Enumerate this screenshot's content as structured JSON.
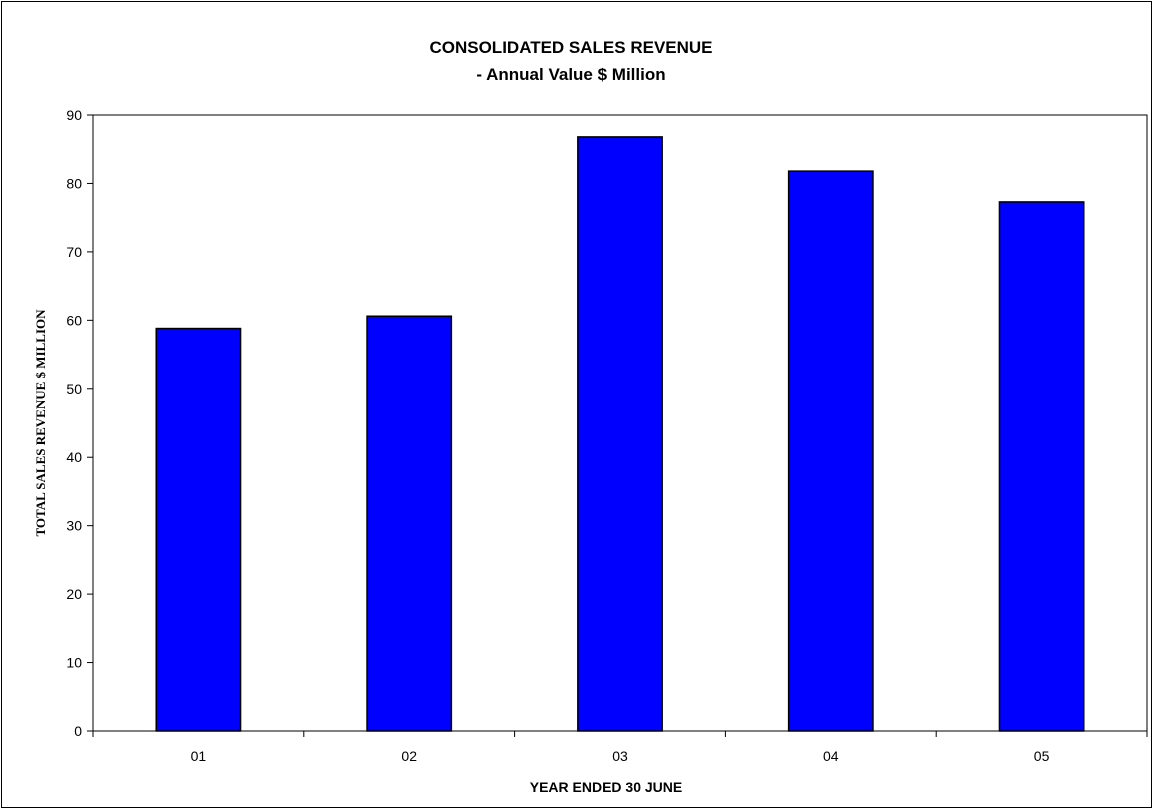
{
  "chart_data": {
    "type": "bar",
    "title": "CONSOLIDATED SALES REVENUE",
    "subtitle": "- Annual Value $ Million",
    "xlabel": "YEAR ENDED 30 JUNE",
    "ylabel": "TOTAL SALES REVENUE $ MILLION",
    "categories": [
      "01",
      "02",
      "03",
      "04",
      "05"
    ],
    "values": [
      58.8,
      60.6,
      86.8,
      81.8,
      77.3
    ],
    "ylim": [
      0,
      90
    ],
    "yticks": [
      0,
      10,
      20,
      30,
      40,
      50,
      60,
      70,
      80,
      90
    ],
    "grid": false,
    "legend": "none",
    "bar_color": "#0000FF",
    "bar_edge_color": "#000000"
  }
}
